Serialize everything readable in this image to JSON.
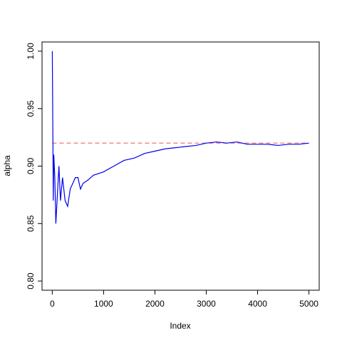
{
  "chart_data": {
    "type": "line",
    "x_label": "Index",
    "y_label": "alpha",
    "x": [
      1,
      10,
      20,
      30,
      50,
      70,
      100,
      130,
      160,
      200,
      250,
      300,
      350,
      400,
      450,
      500,
      550,
      600,
      700,
      800,
      1000,
      1200,
      1400,
      1600,
      1800,
      2000,
      2200,
      2400,
      2600,
      2800,
      3000,
      3200,
      3400,
      3600,
      3800,
      4000,
      4200,
      4400,
      4600,
      4800,
      5000
    ],
    "series": [
      {
        "color": "#0000ee",
        "values": [
          1.0,
          0.94,
          0.87,
          0.91,
          0.89,
          0.85,
          0.875,
          0.9,
          0.87,
          0.89,
          0.87,
          0.865,
          0.88,
          0.885,
          0.89,
          0.89,
          0.88,
          0.885,
          0.888,
          0.892,
          0.895,
          0.9,
          0.905,
          0.907,
          0.911,
          0.913,
          0.915,
          0.916,
          0.917,
          0.918,
          0.92,
          0.921,
          0.92,
          0.921,
          0.919,
          0.919,
          0.919,
          0.918,
          0.919,
          0.919,
          0.92
        ]
      }
    ],
    "hline": 0.92,
    "hline_color": "#f08080",
    "xlim": [
      -199,
      5200
    ],
    "xticks": [
      0,
      1000,
      2000,
      3000,
      4000,
      5000
    ],
    "ylim": [
      0.792,
      1.008
    ],
    "yticks": [
      {
        "value": 0.8,
        "label": "0.80"
      },
      {
        "value": 0.85,
        "label": "0.85"
      },
      {
        "value": 0.9,
        "label": "0.90"
      },
      {
        "value": 0.95,
        "label": "0.95"
      },
      {
        "value": 1.0,
        "label": "1.00"
      }
    ],
    "grid": false
  }
}
